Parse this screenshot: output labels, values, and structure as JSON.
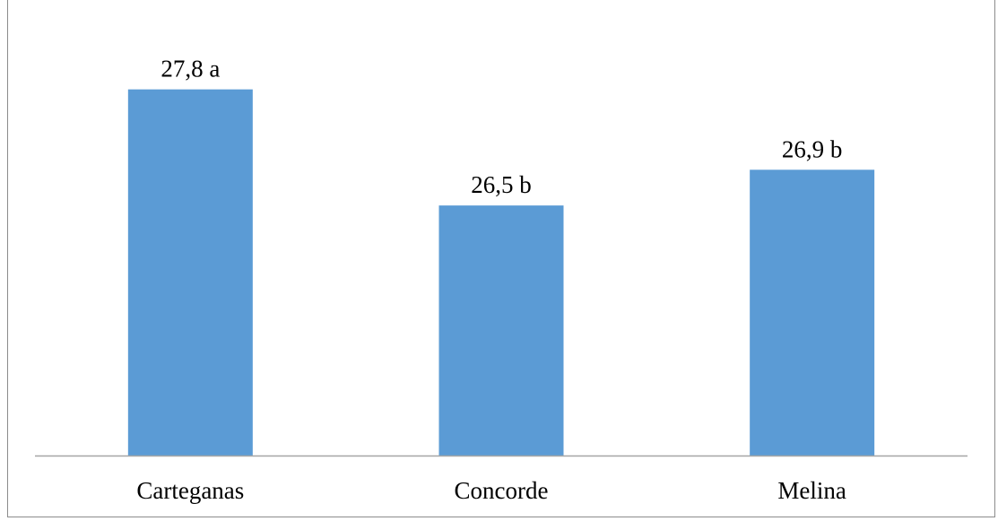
{
  "chart_data": {
    "type": "bar",
    "categories": [
      "Carteganas",
      "Concorde",
      "Melina"
    ],
    "values": [
      27.8,
      26.5,
      26.9
    ],
    "data_labels": [
      "27,8 a",
      "26,5 b",
      "26,9 b"
    ],
    "title": "",
    "xlabel": "",
    "ylabel": "",
    "ylim": [
      23.7,
      28.6
    ],
    "grid": false,
    "legend": "none",
    "colors": {
      "bar": "#5b9bd5",
      "axis": "#a6a6a6",
      "border": "#8c8c8c"
    }
  }
}
